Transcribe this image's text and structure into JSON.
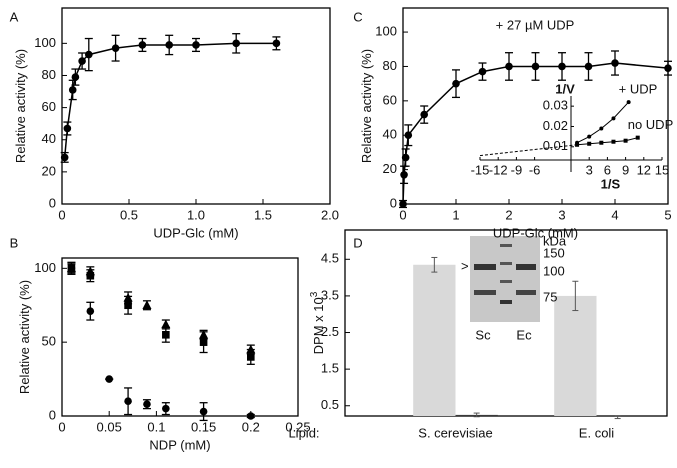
{
  "chart_data": [
    {
      "type": "line",
      "panel": "A",
      "xlabel": "UDP-Glc (mM)",
      "ylabel": "Relative activity (%)",
      "frame": true,
      "xlim": [
        0,
        2
      ],
      "xticks": [
        0,
        0.5,
        {
          "value": 1,
          "label": "1.0"
        },
        1.5,
        {
          "value": 2,
          "label": "2.0"
        }
      ],
      "ylim": [
        0,
        122
      ],
      "yticks": [
        0,
        20,
        40,
        60,
        80,
        100
      ],
      "series": [
        {
          "marker": "circle",
          "color": "#000000",
          "x": [
            0.02,
            0.04,
            0.08,
            0.1,
            0.15,
            0.2,
            0.4,
            0.6,
            0.8,
            1.0,
            1.3,
            1.6
          ],
          "values": [
            29,
            47,
            71,
            79,
            89,
            93,
            97,
            99,
            99,
            99,
            100,
            100
          ],
          "errors": [
            3,
            4,
            6,
            5,
            5,
            10,
            8,
            4,
            6,
            4,
            6,
            4
          ]
        }
      ]
    },
    {
      "type": "scatter",
      "panel": "B",
      "xlabel": "NDP (mM)",
      "ylabel": "Relative activity (%)",
      "frame": true,
      "xlim": [
        0,
        0.25
      ],
      "xticks": [
        0,
        0.05,
        0.1,
        0.15,
        0.2,
        0.25
      ],
      "ylim": [
        0,
        107
      ],
      "yticks": [
        0,
        50,
        100
      ],
      "series": [
        {
          "marker": "circle",
          "color": "#000000",
          "x": [
            0.01,
            0.03,
            0.05,
            0.07,
            0.09,
            0.11,
            0.15,
            0.2
          ],
          "values": [
            100,
            71,
            25,
            10,
            8,
            5,
            3,
            0
          ],
          "errors": [
            4,
            6,
            0,
            9,
            3,
            4,
            6,
            1
          ]
        },
        {
          "marker": "square",
          "color": "#000000",
          "x": [
            0.01,
            0.03,
            0.07,
            0.11,
            0.15,
            0.2
          ],
          "values": [
            100,
            95,
            75,
            55,
            50,
            40
          ],
          "errors": [
            4,
            4,
            6,
            5,
            7,
            5
          ]
        },
        {
          "marker": "triangle",
          "color": "#000000",
          "x": [
            0.01,
            0.03,
            0.07,
            0.09,
            0.11,
            0.15,
            0.2
          ],
          "values": [
            100,
            98,
            80,
            75,
            62,
            55,
            45
          ],
          "errors": [
            3,
            3,
            4,
            3,
            3,
            3,
            3
          ]
        }
      ]
    },
    {
      "type": "line",
      "panel": "C",
      "xlabel": "UDP-Glc (mM)",
      "ylabel": "Relative activity (%)",
      "annotation": "+ 27 µM UDP",
      "frame": true,
      "xlim": [
        0,
        5
      ],
      "xticks": [
        0,
        1,
        2,
        3,
        4,
        5
      ],
      "ylim": [
        0,
        114
      ],
      "yticks": [
        0,
        20,
        40,
        60,
        80,
        100
      ],
      "series": [
        {
          "marker": "circle",
          "color": "#000000",
          "x": [
            0,
            0.02,
            0.05,
            0.1,
            0.4,
            1,
            1.5,
            2,
            2.5,
            3,
            3.5,
            4,
            5
          ],
          "values": [
            0,
            17,
            27,
            40,
            52,
            70,
            77,
            80,
            80,
            80,
            80,
            82,
            79
          ],
          "errors": [
            2,
            5,
            5,
            6,
            5,
            8,
            5,
            8,
            8,
            8,
            8,
            7,
            4
          ]
        }
      ]
    },
    {
      "type": "line",
      "xlabel": "1/S",
      "ylabel": "1/V",
      "frame": false,
      "xlim": [
        -15,
        15
      ],
      "xticks": [
        -15,
        -12,
        -9,
        -6,
        3,
        6,
        9,
        12,
        15
      ],
      "ylim": [
        0.0035,
        0.035
      ],
      "yticks": [
        0.01,
        0.02,
        0.03
      ],
      "series": [
        {
          "name": "+ UDP",
          "marker": "circle",
          "color": "#000000",
          "x": [
            1,
            3,
            5,
            7,
            9.5
          ],
          "values": [
            0.012,
            0.015,
            0.019,
            0.024,
            0.032
          ]
        },
        {
          "name": "no UDP",
          "marker": "square",
          "color": "#000000",
          "extrapolate": true,
          "x": [
            1,
            3,
            5,
            7,
            9,
            11
          ],
          "values": [
            0.011,
            0.0115,
            0.012,
            0.0125,
            0.013,
            0.0145
          ]
        }
      ]
    },
    {
      "type": "bar",
      "panel": "D",
      "xlabel": "Lipid:",
      "ylabel": "DPM x 10",
      "ylabel_exp": "3",
      "frame": true,
      "categories": [
        "S. cerevisiae",
        "E. coli"
      ],
      "ylim": [
        0.22,
        5.3
      ],
      "yticks": [
        0.5,
        1.5,
        2.5,
        3.5,
        4.5
      ],
      "series": [
        {
          "color": "#d9d9d9",
          "values": [
            4.35,
            3.5
          ],
          "errors": [
            0.2,
            0.4
          ]
        },
        {
          "color": "#3a3a3a",
          "values": [
            0.25,
            0.18
          ],
          "errors": [
            0.05,
            0.03
          ]
        }
      ],
      "gel": {
        "unit": "kDa",
        "markers": [
          150,
          100,
          75
        ],
        "lanes": [
          "Sc",
          "Ec"
        ],
        "pointer": ">"
      }
    }
  ]
}
